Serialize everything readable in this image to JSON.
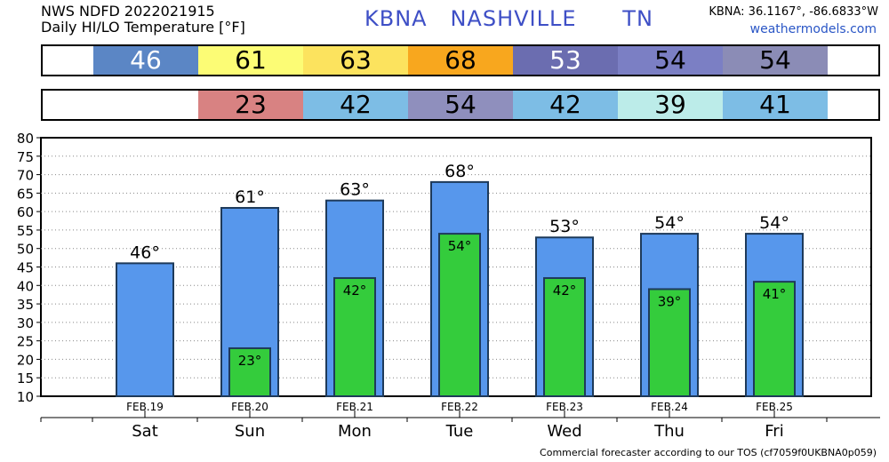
{
  "header": {
    "title": "NWS NDFD 2022021915",
    "subtitle": "Daily HI/LO Temperature [°F]",
    "station": "KBNA   NASHVILLE      TN",
    "coords": "KBNA: 36.1167°, -86.6833°W",
    "site": "weathermodels.com"
  },
  "hi_strip": [
    {
      "value": "46",
      "color": "#5b86c5",
      "text_color": "#ffffff"
    },
    {
      "value": "61",
      "color": "#fcfc75",
      "text_color": "#000000"
    },
    {
      "value": "63",
      "color": "#fce35e",
      "text_color": "#000000"
    },
    {
      "value": "68",
      "color": "#f8a71e",
      "text_color": "#000000"
    },
    {
      "value": "53",
      "color": "#6b6db0",
      "text_color": "#ffffff"
    },
    {
      "value": "54",
      "color": "#7b7fc4",
      "text_color": "#000000"
    },
    {
      "value": "54",
      "color": "#8b8cb6",
      "text_color": "#000000"
    }
  ],
  "lo_strip": [
    {
      "value": "",
      "color": "#ffffff",
      "text_color": "#000000"
    },
    {
      "value": "23",
      "color": "#d88282",
      "text_color": "#000000"
    },
    {
      "value": "42",
      "color": "#7dbde5",
      "text_color": "#000000"
    },
    {
      "value": "54",
      "color": "#8f8fbd",
      "text_color": "#000000"
    },
    {
      "value": "42",
      "color": "#7dbde5",
      "text_color": "#000000"
    },
    {
      "value": "39",
      "color": "#bcece9",
      "text_color": "#000000"
    },
    {
      "value": "41",
      "color": "#7dbde5",
      "text_color": "#000000"
    }
  ],
  "chart_data": {
    "type": "bar",
    "categories": [
      "Sat",
      "Sun",
      "Mon",
      "Tue",
      "Wed",
      "Thu",
      "Fri"
    ],
    "dates": [
      "FEB.19",
      "FEB.20",
      "FEB.21",
      "FEB.22",
      "FEB.23",
      "FEB.24",
      "FEB.25"
    ],
    "series": [
      {
        "values": [
          46,
          61,
          63,
          68,
          53,
          54,
          54
        ],
        "color": "#5797ec"
      },
      {
        "values": [
          null,
          23,
          42,
          54,
          42,
          39,
          41
        ],
        "color": "#34cc3c"
      }
    ],
    "hi_labels": [
      "46°",
      "61°",
      "63°",
      "68°",
      "53°",
      "54°",
      "54°"
    ],
    "lo_labels": [
      "",
      "23°",
      "42°",
      "54°",
      "42°",
      "39°",
      "41°"
    ],
    "ylim": [
      10,
      80
    ],
    "yticks": [
      "10",
      "15",
      "20",
      "25",
      "30",
      "35",
      "40",
      "45",
      "50",
      "55",
      "60",
      "65",
      "70",
      "75",
      "80"
    ],
    "grid": true
  },
  "footer": "Commercial forecaster according to our TOS (cf7059f0UKBNA0p059)"
}
